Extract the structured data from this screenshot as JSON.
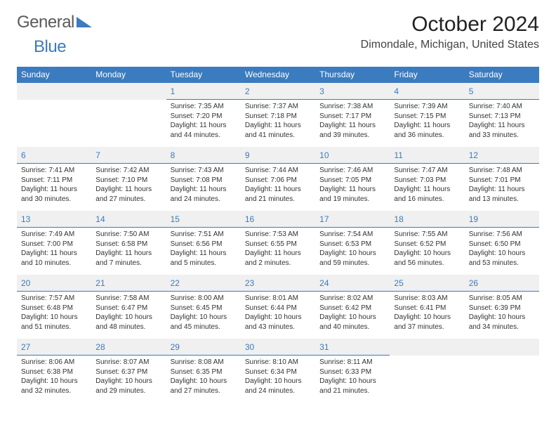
{
  "brand": {
    "part1": "General",
    "part2": "Blue"
  },
  "title": "October 2024",
  "location": "Dimondale, Michigan, United States",
  "colors": {
    "header_bg": "#3b7bbf",
    "header_text": "#ffffff",
    "daynum_bg": "#f0f0f0",
    "daynum_color": "#3b7bbf",
    "daynum_border": "#3b7bbf",
    "body_text": "#333333",
    "page_bg": "#ffffff"
  },
  "typography": {
    "title_fontsize": 30,
    "location_fontsize": 16,
    "dayhead_fontsize": 12,
    "daynum_fontsize": 12,
    "cell_fontsize": 10,
    "font_family": "Arial"
  },
  "day_headers": [
    "Sunday",
    "Monday",
    "Tuesday",
    "Wednesday",
    "Thursday",
    "Friday",
    "Saturday"
  ],
  "weeks": [
    {
      "nums": [
        "",
        "",
        "1",
        "2",
        "3",
        "4",
        "5"
      ],
      "cells": [
        null,
        null,
        {
          "sr": "Sunrise: 7:35 AM",
          "ss": "Sunset: 7:20 PM",
          "dl": "Daylight: 11 hours and 44 minutes."
        },
        {
          "sr": "Sunrise: 7:37 AM",
          "ss": "Sunset: 7:18 PM",
          "dl": "Daylight: 11 hours and 41 minutes."
        },
        {
          "sr": "Sunrise: 7:38 AM",
          "ss": "Sunset: 7:17 PM",
          "dl": "Daylight: 11 hours and 39 minutes."
        },
        {
          "sr": "Sunrise: 7:39 AM",
          "ss": "Sunset: 7:15 PM",
          "dl": "Daylight: 11 hours and 36 minutes."
        },
        {
          "sr": "Sunrise: 7:40 AM",
          "ss": "Sunset: 7:13 PM",
          "dl": "Daylight: 11 hours and 33 minutes."
        }
      ]
    },
    {
      "nums": [
        "6",
        "7",
        "8",
        "9",
        "10",
        "11",
        "12"
      ],
      "cells": [
        {
          "sr": "Sunrise: 7:41 AM",
          "ss": "Sunset: 7:11 PM",
          "dl": "Daylight: 11 hours and 30 minutes."
        },
        {
          "sr": "Sunrise: 7:42 AM",
          "ss": "Sunset: 7:10 PM",
          "dl": "Daylight: 11 hours and 27 minutes."
        },
        {
          "sr": "Sunrise: 7:43 AM",
          "ss": "Sunset: 7:08 PM",
          "dl": "Daylight: 11 hours and 24 minutes."
        },
        {
          "sr": "Sunrise: 7:44 AM",
          "ss": "Sunset: 7:06 PM",
          "dl": "Daylight: 11 hours and 21 minutes."
        },
        {
          "sr": "Sunrise: 7:46 AM",
          "ss": "Sunset: 7:05 PM",
          "dl": "Daylight: 11 hours and 19 minutes."
        },
        {
          "sr": "Sunrise: 7:47 AM",
          "ss": "Sunset: 7:03 PM",
          "dl": "Daylight: 11 hours and 16 minutes."
        },
        {
          "sr": "Sunrise: 7:48 AM",
          "ss": "Sunset: 7:01 PM",
          "dl": "Daylight: 11 hours and 13 minutes."
        }
      ]
    },
    {
      "nums": [
        "13",
        "14",
        "15",
        "16",
        "17",
        "18",
        "19"
      ],
      "cells": [
        {
          "sr": "Sunrise: 7:49 AM",
          "ss": "Sunset: 7:00 PM",
          "dl": "Daylight: 11 hours and 10 minutes."
        },
        {
          "sr": "Sunrise: 7:50 AM",
          "ss": "Sunset: 6:58 PM",
          "dl": "Daylight: 11 hours and 7 minutes."
        },
        {
          "sr": "Sunrise: 7:51 AM",
          "ss": "Sunset: 6:56 PM",
          "dl": "Daylight: 11 hours and 5 minutes."
        },
        {
          "sr": "Sunrise: 7:53 AM",
          "ss": "Sunset: 6:55 PM",
          "dl": "Daylight: 11 hours and 2 minutes."
        },
        {
          "sr": "Sunrise: 7:54 AM",
          "ss": "Sunset: 6:53 PM",
          "dl": "Daylight: 10 hours and 59 minutes."
        },
        {
          "sr": "Sunrise: 7:55 AM",
          "ss": "Sunset: 6:52 PM",
          "dl": "Daylight: 10 hours and 56 minutes."
        },
        {
          "sr": "Sunrise: 7:56 AM",
          "ss": "Sunset: 6:50 PM",
          "dl": "Daylight: 10 hours and 53 minutes."
        }
      ]
    },
    {
      "nums": [
        "20",
        "21",
        "22",
        "23",
        "24",
        "25",
        "26"
      ],
      "cells": [
        {
          "sr": "Sunrise: 7:57 AM",
          "ss": "Sunset: 6:48 PM",
          "dl": "Daylight: 10 hours and 51 minutes."
        },
        {
          "sr": "Sunrise: 7:58 AM",
          "ss": "Sunset: 6:47 PM",
          "dl": "Daylight: 10 hours and 48 minutes."
        },
        {
          "sr": "Sunrise: 8:00 AM",
          "ss": "Sunset: 6:45 PM",
          "dl": "Daylight: 10 hours and 45 minutes."
        },
        {
          "sr": "Sunrise: 8:01 AM",
          "ss": "Sunset: 6:44 PM",
          "dl": "Daylight: 10 hours and 43 minutes."
        },
        {
          "sr": "Sunrise: 8:02 AM",
          "ss": "Sunset: 6:42 PM",
          "dl": "Daylight: 10 hours and 40 minutes."
        },
        {
          "sr": "Sunrise: 8:03 AM",
          "ss": "Sunset: 6:41 PM",
          "dl": "Daylight: 10 hours and 37 minutes."
        },
        {
          "sr": "Sunrise: 8:05 AM",
          "ss": "Sunset: 6:39 PM",
          "dl": "Daylight: 10 hours and 34 minutes."
        }
      ]
    },
    {
      "nums": [
        "27",
        "28",
        "29",
        "30",
        "31",
        "",
        ""
      ],
      "cells": [
        {
          "sr": "Sunrise: 8:06 AM",
          "ss": "Sunset: 6:38 PM",
          "dl": "Daylight: 10 hours and 32 minutes."
        },
        {
          "sr": "Sunrise: 8:07 AM",
          "ss": "Sunset: 6:37 PM",
          "dl": "Daylight: 10 hours and 29 minutes."
        },
        {
          "sr": "Sunrise: 8:08 AM",
          "ss": "Sunset: 6:35 PM",
          "dl": "Daylight: 10 hours and 27 minutes."
        },
        {
          "sr": "Sunrise: 8:10 AM",
          "ss": "Sunset: 6:34 PM",
          "dl": "Daylight: 10 hours and 24 minutes."
        },
        {
          "sr": "Sunrise: 8:11 AM",
          "ss": "Sunset: 6:33 PM",
          "dl": "Daylight: 10 hours and 21 minutes."
        },
        null,
        null
      ]
    }
  ]
}
